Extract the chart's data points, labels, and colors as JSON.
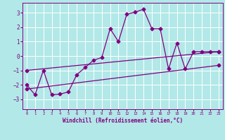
{
  "background_color": "#b2e8e8",
  "grid_color": "#ffffff",
  "line_color": "#800080",
  "xlim": [
    -0.5,
    23.5
  ],
  "ylim": [
    -3.7,
    3.7
  ],
  "xticks": [
    0,
    1,
    2,
    3,
    4,
    5,
    6,
    7,
    8,
    9,
    10,
    11,
    12,
    13,
    14,
    15,
    16,
    17,
    18,
    19,
    20,
    21,
    22,
    23
  ],
  "yticks": [
    -3,
    -2,
    -1,
    0,
    1,
    2,
    3
  ],
  "xlabel": "Windchill (Refroidissement éolien,°C)",
  "series1_x": [
    0,
    1,
    2,
    3,
    4,
    5,
    6,
    7,
    8,
    9,
    10,
    11,
    12,
    13,
    14,
    15,
    16,
    17,
    18,
    19,
    20,
    21,
    22,
    23
  ],
  "series1_y": [
    -2.0,
    -2.7,
    -1.0,
    -2.7,
    -2.65,
    -2.5,
    -1.3,
    -0.8,
    -0.3,
    -0.1,
    1.9,
    1.0,
    2.9,
    3.05,
    3.25,
    1.9,
    1.9,
    -0.9,
    0.9,
    -0.9,
    0.3,
    0.3,
    0.3,
    0.3
  ],
  "series2_x": [
    0,
    23
  ],
  "series2_y": [
    -1.0,
    0.3
  ],
  "series3_x": [
    0,
    23
  ],
  "series3_y": [
    -2.3,
    -0.65
  ],
  "marker": "D",
  "markersize": 2.5,
  "linewidth": 0.9
}
